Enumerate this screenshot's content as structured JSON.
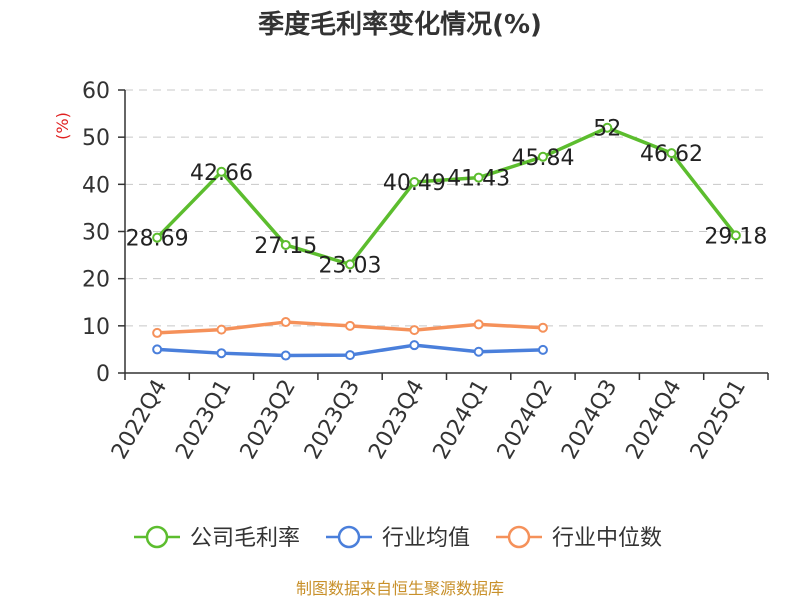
{
  "chart_data": {
    "type": "line",
    "title": "季度毛利率变化情况(%)",
    "ylabel": "(%)",
    "xlabel": "",
    "ylim": [
      0,
      60
    ],
    "yticks": [
      0,
      10,
      20,
      30,
      40,
      50,
      60
    ],
    "grid": true,
    "legend_position": "bottom",
    "categories": [
      "2022Q4",
      "2023Q1",
      "2023Q2",
      "2023Q3",
      "2023Q4",
      "2024Q1",
      "2024Q2",
      "2024Q3",
      "2024Q4",
      "2025Q1"
    ],
    "series": [
      {
        "name": "公司毛利率",
        "color": "#5cbd2e",
        "show_labels": true,
        "values": [
          28.69,
          42.66,
          27.15,
          23.03,
          40.49,
          41.43,
          45.84,
          52,
          46.62,
          29.18
        ]
      },
      {
        "name": "行业均值",
        "color": "#4a7fdb",
        "show_labels": false,
        "values": [
          5.0,
          4.2,
          3.7,
          3.8,
          5.9,
          4.5,
          4.9,
          null,
          null,
          null
        ]
      },
      {
        "name": "行业中位数",
        "color": "#f5915a",
        "show_labels": false,
        "values": [
          8.5,
          9.2,
          10.8,
          10.0,
          9.1,
          10.3,
          9.6,
          null,
          null,
          null
        ]
      }
    ]
  },
  "source": "制图数据来自恒生聚源数据库"
}
